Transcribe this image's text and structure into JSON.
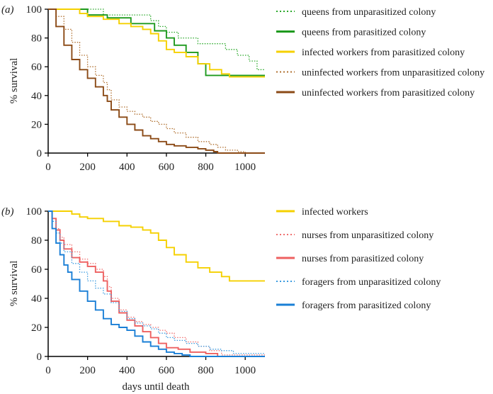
{
  "chart_data": [
    {
      "panel": "(a)",
      "type": "line",
      "step": true,
      "xlabel": "",
      "ylabel": "% survival",
      "xlim": [
        0,
        1100
      ],
      "ylim": [
        0,
        100
      ],
      "xticks": [
        0,
        200,
        400,
        600,
        800,
        1000
      ],
      "yticks": [
        0,
        20,
        40,
        60,
        80,
        100
      ],
      "legend_position": "right",
      "series": [
        {
          "name": "queens from unparasitized colony",
          "color": "#2aa82a",
          "dash": "dotted",
          "x": [
            0,
            240,
            280,
            480,
            520,
            560,
            600,
            660,
            760,
            900,
            960,
            1020,
            1060,
            1100
          ],
          "y": [
            100,
            100,
            96,
            96,
            92,
            88,
            84,
            80,
            76,
            72,
            68,
            64,
            58,
            58
          ]
        },
        {
          "name": "queens from parasitized colony",
          "color": "#1e9a1e",
          "dash": "solid",
          "x": [
            0,
            150,
            200,
            300,
            420,
            520,
            540,
            600,
            640,
            700,
            760,
            800,
            1100
          ],
          "y": [
            100,
            100,
            96,
            94,
            90,
            90,
            85,
            80,
            75,
            70,
            62,
            54,
            54
          ]
        },
        {
          "name": "infected workers from parasitized colony",
          "color": "#f5d000",
          "dash": "solid",
          "x": [
            0,
            110,
            160,
            200,
            280,
            360,
            420,
            480,
            520,
            560,
            600,
            640,
            700,
            760,
            820,
            880,
            920,
            1100
          ],
          "y": [
            100,
            100,
            97,
            95,
            93,
            90,
            88,
            86,
            83,
            78,
            72,
            70,
            67,
            62,
            58,
            55,
            53,
            53
          ]
        },
        {
          "name": "uninfected workers from unparasitized colony",
          "color": "#b07030",
          "dash": "dotted",
          "x": [
            0,
            40,
            80,
            120,
            160,
            200,
            240,
            280,
            300,
            320,
            360,
            400,
            440,
            480,
            520,
            560,
            600,
            640,
            700,
            760,
            820,
            860,
            900,
            960,
            1000,
            1100
          ],
          "y": [
            100,
            95,
            86,
            77,
            68,
            60,
            54,
            49,
            44,
            37,
            32,
            29,
            27,
            25,
            22,
            20,
            17,
            14,
            11,
            8,
            6,
            4,
            2,
            1,
            0,
            0
          ]
        },
        {
          "name": "uninfected workers from parasitized colony",
          "color": "#8b4a16",
          "dash": "solid",
          "x": [
            0,
            40,
            80,
            120,
            160,
            200,
            240,
            280,
            300,
            320,
            360,
            400,
            440,
            480,
            520,
            560,
            600,
            640,
            700,
            760,
            800,
            840,
            860,
            1100
          ],
          "y": [
            100,
            88,
            75,
            65,
            58,
            52,
            46,
            40,
            36,
            30,
            25,
            20,
            16,
            12,
            10,
            8,
            6,
            5,
            4,
            3,
            2,
            1,
            0,
            0
          ]
        }
      ]
    },
    {
      "panel": "(b)",
      "type": "line",
      "step": true,
      "xlabel": "days until death",
      "ylabel": "% survival",
      "xlim": [
        0,
        1100
      ],
      "ylim": [
        0,
        100
      ],
      "xticks": [
        0,
        200,
        400,
        600,
        800,
        1000
      ],
      "yticks": [
        0,
        20,
        40,
        60,
        80,
        100
      ],
      "legend_position": "right",
      "series": [
        {
          "name": "infected workers",
          "color": "#f5d000",
          "dash": "solid",
          "x": [
            0,
            80,
            120,
            160,
            200,
            280,
            360,
            420,
            480,
            520,
            560,
            600,
            640,
            700,
            760,
            820,
            880,
            920,
            1100
          ],
          "y": [
            100,
            100,
            98,
            96,
            95,
            93,
            90,
            89,
            87,
            85,
            80,
            75,
            70,
            65,
            61,
            58,
            55,
            52,
            52
          ]
        },
        {
          "name": "nurses from unparasitized colony",
          "color": "#f07070",
          "dash": "dotted",
          "x": [
            0,
            20,
            40,
            60,
            80,
            120,
            160,
            200,
            240,
            280,
            300,
            320,
            360,
            400,
            440,
            480,
            520,
            560,
            600,
            640,
            700,
            760,
            820,
            880,
            1100
          ],
          "y": [
            100,
            95,
            88,
            82,
            77,
            72,
            67,
            64,
            60,
            55,
            48,
            40,
            32,
            27,
            24,
            22,
            20,
            18,
            16,
            13,
            10,
            7,
            4,
            1,
            1
          ]
        },
        {
          "name": "nurses from parasitized colony",
          "color": "#ee6060",
          "dash": "solid",
          "x": [
            0,
            20,
            40,
            60,
            80,
            120,
            160,
            200,
            240,
            280,
            300,
            320,
            360,
            400,
            440,
            480,
            520,
            560,
            600,
            660,
            720,
            800,
            860,
            1100
          ],
          "y": [
            100,
            95,
            87,
            80,
            74,
            68,
            65,
            62,
            58,
            52,
            45,
            38,
            30,
            25,
            21,
            17,
            13,
            9,
            6,
            5,
            3,
            2,
            0,
            0
          ]
        },
        {
          "name": "foragers from unparasitized colony",
          "color": "#3a9be0",
          "dash": "dotted",
          "x": [
            0,
            20,
            40,
            60,
            80,
            120,
            160,
            200,
            240,
            280,
            320,
            360,
            400,
            440,
            480,
            520,
            560,
            600,
            640,
            700,
            760,
            820,
            880,
            940,
            1100
          ],
          "y": [
            100,
            93,
            85,
            78,
            72,
            64,
            58,
            52,
            47,
            43,
            37,
            31,
            26,
            23,
            21,
            19,
            16,
            13,
            11,
            9,
            7,
            5,
            4,
            2,
            2
          ]
        },
        {
          "name": "foragers from parasitized colony",
          "color": "#1a7fd6",
          "dash": "solid",
          "x": [
            0,
            20,
            40,
            60,
            80,
            100,
            120,
            160,
            200,
            240,
            280,
            320,
            360,
            400,
            440,
            480,
            520,
            560,
            600,
            640,
            680,
            720,
            1100
          ],
          "y": [
            100,
            88,
            78,
            70,
            63,
            58,
            53,
            45,
            38,
            32,
            26,
            22,
            20,
            18,
            14,
            10,
            7,
            5,
            3,
            2,
            1,
            0,
            0
          ]
        }
      ]
    }
  ]
}
